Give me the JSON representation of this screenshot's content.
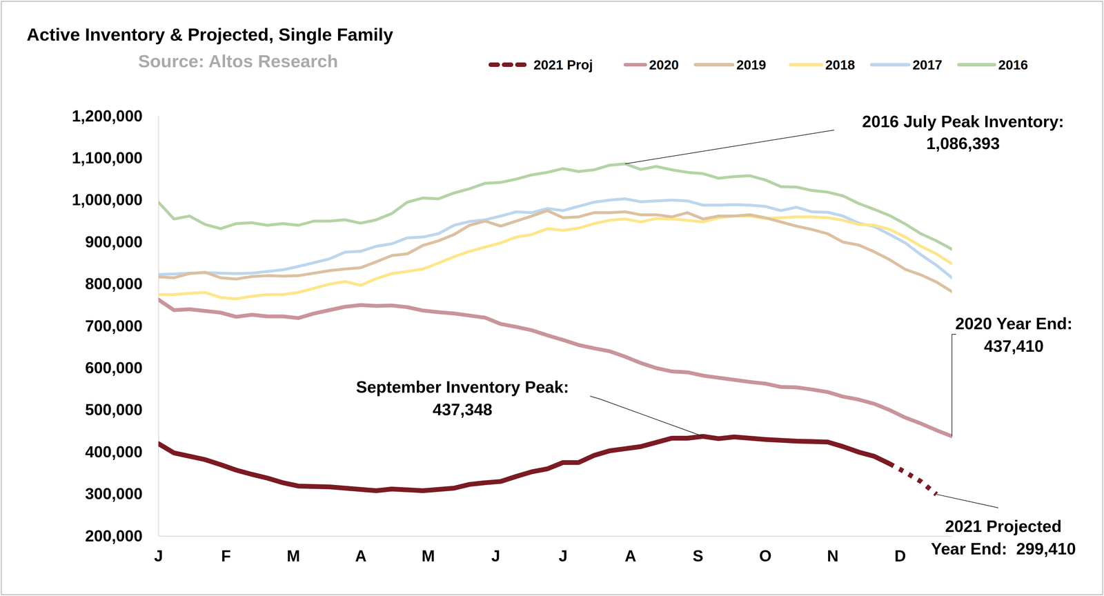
{
  "chart_data": {
    "type": "line",
    "title": "Active Inventory & Projected, Single Family",
    "subtitle": "Source: Altos Research",
    "x": [
      0,
      1,
      2,
      3,
      4,
      5,
      6,
      7,
      8,
      9,
      10,
      11,
      12,
      13,
      14,
      15,
      16,
      17,
      18,
      19,
      20,
      21,
      22,
      23,
      24,
      25,
      26,
      27,
      28,
      29,
      30,
      31,
      32,
      33,
      34,
      35,
      36,
      37,
      38,
      39,
      40,
      41,
      42,
      43,
      44,
      45,
      46,
      47,
      48,
      49,
      50,
      51
    ],
    "xlim": [
      0,
      51
    ],
    "xticks": [
      {
        "value": 0,
        "label": "J"
      },
      {
        "value": 4.333,
        "label": "F"
      },
      {
        "value": 8.667,
        "label": "M"
      },
      {
        "value": 13,
        "label": "A"
      },
      {
        "value": 17.333,
        "label": "M"
      },
      {
        "value": 21.667,
        "label": "J"
      },
      {
        "value": 26,
        "label": "J"
      },
      {
        "value": 30.333,
        "label": "A"
      },
      {
        "value": 34.667,
        "label": "S"
      },
      {
        "value": 39,
        "label": "O"
      },
      {
        "value": 43.333,
        "label": "N"
      },
      {
        "value": 47.667,
        "label": "D"
      }
    ],
    "ylim": [
      200000,
      1200000
    ],
    "yticks": [
      {
        "value": 200000,
        "label": "200,000"
      },
      {
        "value": 300000,
        "label": "300,000"
      },
      {
        "value": 400000,
        "label": "400,000"
      },
      {
        "value": 500000,
        "label": "500,000"
      },
      {
        "value": 600000,
        "label": "600,000"
      },
      {
        "value": 700000,
        "label": "700,000"
      },
      {
        "value": 800000,
        "label": "800,000"
      },
      {
        "value": 900000,
        "label": "900,000"
      },
      {
        "value": 1000000,
        "label": "1,000,000"
      },
      {
        "value": 1100000,
        "label": "1,100,000"
      },
      {
        "value": 1200000,
        "label": "1,200,000"
      }
    ],
    "grid": false,
    "legend": "top",
    "series": [
      {
        "name": "2021 Proj",
        "color": "#7b1a22",
        "values": [
          420000,
          398000,
          390000,
          382000,
          370000,
          357000,
          347000,
          338000,
          327000,
          319000,
          318000,
          317000,
          314000,
          311000,
          308000,
          312000,
          310000,
          308000,
          311000,
          314000,
          323000,
          327000,
          330000,
          342000,
          353000,
          360000,
          375000,
          375000,
          392000,
          403000,
          408000,
          413000,
          423000,
          433000,
          433000,
          437348,
          432000,
          436000,
          433000,
          430000,
          428000,
          426000,
          425000,
          424000,
          413000,
          400000,
          390000,
          372000,
          null,
          null,
          null,
          null
        ],
        "projection": [
          null,
          null,
          null,
          null,
          null,
          null,
          null,
          null,
          null,
          null,
          null,
          null,
          null,
          null,
          null,
          null,
          null,
          null,
          null,
          null,
          null,
          null,
          null,
          null,
          null,
          null,
          null,
          null,
          null,
          null,
          null,
          null,
          null,
          null,
          null,
          null,
          null,
          null,
          null,
          null,
          null,
          null,
          null,
          null,
          null,
          null,
          null,
          372000,
          352000,
          330000,
          299410,
          null
        ]
      },
      {
        "name": "2020",
        "color": "#c9949a",
        "values": [
          763000,
          738000,
          740000,
          736000,
          732000,
          722000,
          727000,
          723000,
          723000,
          719000,
          730000,
          738000,
          746000,
          750000,
          748000,
          749000,
          745000,
          737000,
          733000,
          730000,
          725000,
          720000,
          705000,
          698000,
          690000,
          678000,
          667000,
          655000,
          647000,
          640000,
          627000,
          612000,
          600000,
          592000,
          590000,
          582000,
          577000,
          572000,
          567000,
          563000,
          555000,
          554000,
          549000,
          543000,
          532000,
          525000,
          515000,
          500000,
          482000,
          468000,
          452000,
          437410
        ]
      },
      {
        "name": "2019",
        "color": "#dcc0a0",
        "values": [
          817000,
          815000,
          825000,
          828000,
          815000,
          812000,
          818000,
          820000,
          819000,
          820000,
          826000,
          832000,
          836000,
          839000,
          853000,
          868000,
          872000,
          892000,
          903000,
          918000,
          940000,
          950000,
          938000,
          950000,
          962000,
          975000,
          958000,
          960000,
          970000,
          970000,
          972000,
          965000,
          965000,
          960000,
          970000,
          955000,
          962000,
          962000,
          965000,
          958000,
          948000,
          938000,
          930000,
          920000,
          900000,
          893000,
          877000,
          858000,
          835000,
          822000,
          805000,
          782000
        ]
      },
      {
        "name": "2018",
        "color": "#fde68a",
        "values": [
          775000,
          775000,
          778000,
          780000,
          768000,
          765000,
          771000,
          775000,
          775000,
          780000,
          790000,
          800000,
          806000,
          797000,
          813000,
          825000,
          830000,
          836000,
          850000,
          865000,
          878000,
          888000,
          898000,
          912000,
          918000,
          932000,
          928000,
          933000,
          944000,
          952000,
          955000,
          948000,
          956000,
          955000,
          952000,
          948000,
          958000,
          962000,
          962000,
          956000,
          958000,
          960000,
          960000,
          958000,
          952000,
          942000,
          940000,
          930000,
          912000,
          890000,
          872000,
          848000
        ]
      },
      {
        "name": "2017",
        "color": "#bcd6ee",
        "values": [
          823000,
          824000,
          826000,
          827000,
          826000,
          825000,
          826000,
          830000,
          834000,
          842000,
          851000,
          860000,
          876000,
          878000,
          890000,
          896000,
          910000,
          912000,
          920000,
          940000,
          949000,
          953000,
          962000,
          972000,
          970000,
          980000,
          975000,
          985000,
          995000,
          1000000,
          1003000,
          996000,
          998000,
          1000000,
          998000,
          988000,
          988000,
          989000,
          988000,
          985000,
          975000,
          983000,
          972000,
          971000,
          962000,
          945000,
          937000,
          918000,
          898000,
          870000,
          845000,
          815000
        ]
      },
      {
        "name": "2016",
        "color": "#b5d3a5",
        "values": [
          995000,
          955000,
          962000,
          942000,
          932000,
          944000,
          946000,
          940000,
          944000,
          940000,
          950000,
          950000,
          953000,
          945000,
          953000,
          968000,
          995000,
          1005000,
          1003000,
          1017000,
          1027000,
          1040000,
          1042000,
          1050000,
          1060000,
          1066000,
          1075000,
          1068000,
          1072000,
          1083000,
          1086393,
          1073000,
          1080000,
          1072000,
          1066000,
          1063000,
          1052000,
          1056000,
          1058000,
          1048000,
          1032000,
          1031000,
          1023000,
          1019000,
          1010000,
          992000,
          978000,
          963000,
          943000,
          920000,
          903000,
          883000
        ]
      }
    ],
    "annotations": [
      {
        "text": [
          "2016 July Peak Inventory:",
          "1,086,393"
        ],
        "x": 30,
        "y": 1086393
      },
      {
        "text": [
          "2020 Year End:",
          "437,410"
        ],
        "x": 51,
        "y": 437410
      },
      {
        "text": [
          "September Inventory Peak:",
          "437,348"
        ],
        "x": 35,
        "y": 437348
      },
      {
        "text": [
          "2021 Projected",
          "Year End:  299,410"
        ],
        "x": 50,
        "y": 299410
      }
    ]
  }
}
